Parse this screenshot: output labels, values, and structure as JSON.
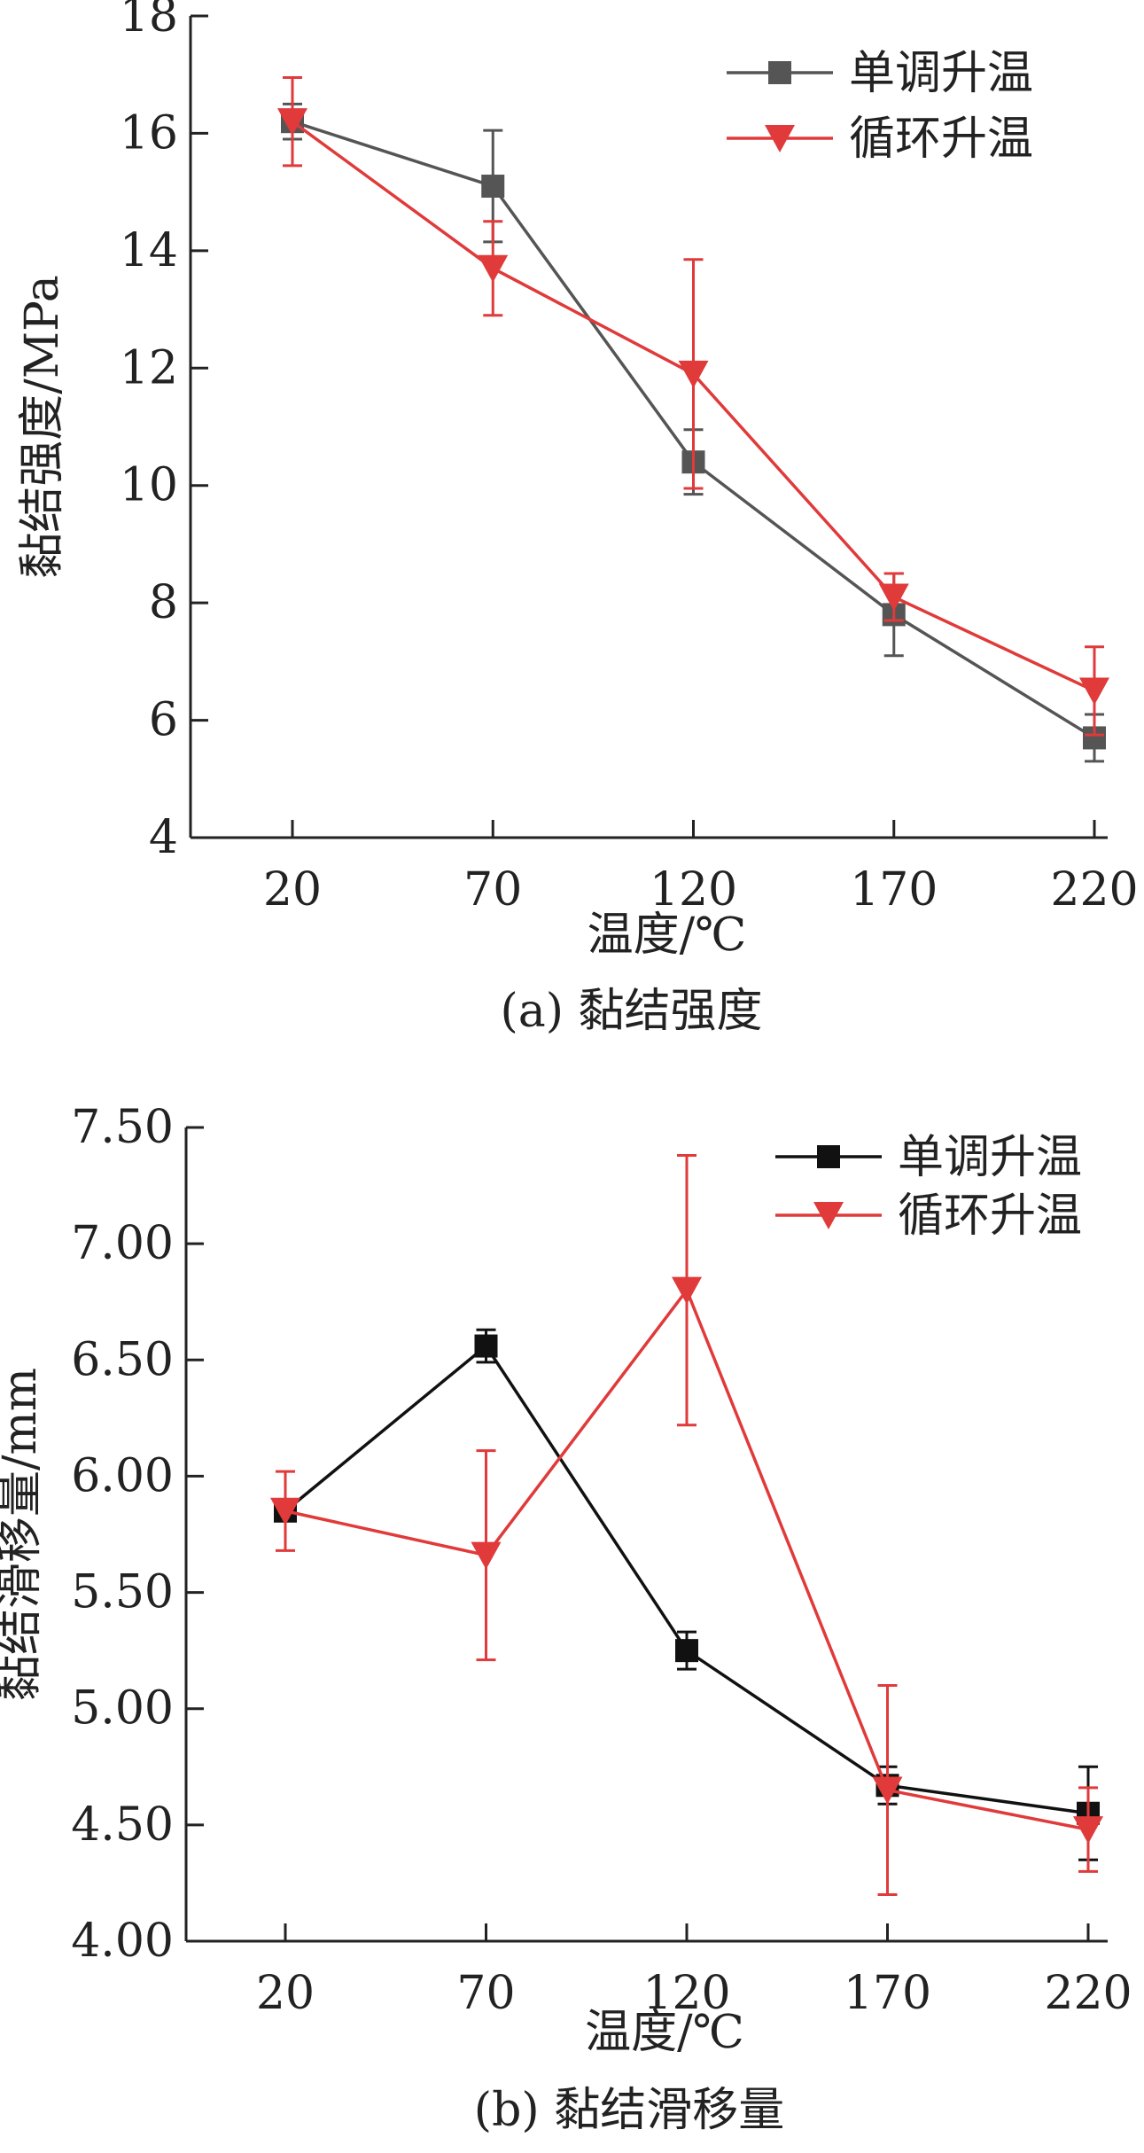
{
  "chart_data": [
    {
      "type": "line",
      "caption": "(a) 黏结强度",
      "xlabel": "温度/℃",
      "ylabel": "黏结强度/MPa",
      "categories": [
        "20",
        "70",
        "120",
        "170",
        "220"
      ],
      "ylim": [
        4,
        18
      ],
      "yticks": [
        "4",
        "6",
        "8",
        "10",
        "12",
        "14",
        "16",
        "18"
      ],
      "legend_position": "top-right",
      "series": [
        {
          "name": "单调升温",
          "marker": "square",
          "color": "#555555",
          "values": [
            16.2,
            15.1,
            10.4,
            7.8,
            5.7
          ],
          "error": [
            0.3,
            0.95,
            0.55,
            0.7,
            0.4
          ]
        },
        {
          "name": "循环升温",
          "marker": "triangle-down",
          "color": "#e03a3a",
          "values": [
            16.2,
            13.7,
            11.9,
            8.1,
            6.5
          ],
          "error": [
            0.75,
            0.8,
            1.95,
            0.4,
            0.75
          ]
        }
      ]
    },
    {
      "type": "line",
      "caption": "(b) 黏结滑移量",
      "xlabel": "温度/℃",
      "ylabel": "黏结滑移量/mm",
      "categories": [
        "20",
        "70",
        "120",
        "170",
        "220"
      ],
      "ylim": [
        4.0,
        7.5
      ],
      "yticks": [
        "4.00",
        "4.50",
        "5.00",
        "5.50",
        "6.00",
        "6.50",
        "7.00",
        "7.50"
      ],
      "legend_position": "top-right",
      "series": [
        {
          "name": "单调升温",
          "marker": "square",
          "color": "#111111",
          "values": [
            5.85,
            6.56,
            5.25,
            4.67,
            4.55
          ],
          "error": [
            0.03,
            0.07,
            0.08,
            0.08,
            0.2
          ]
        },
        {
          "name": "循环升温",
          "marker": "triangle-down",
          "color": "#e03a3a",
          "values": [
            5.85,
            5.66,
            6.8,
            4.65,
            4.48
          ],
          "error": [
            0.17,
            0.45,
            0.58,
            0.45,
            0.18
          ]
        }
      ]
    }
  ]
}
